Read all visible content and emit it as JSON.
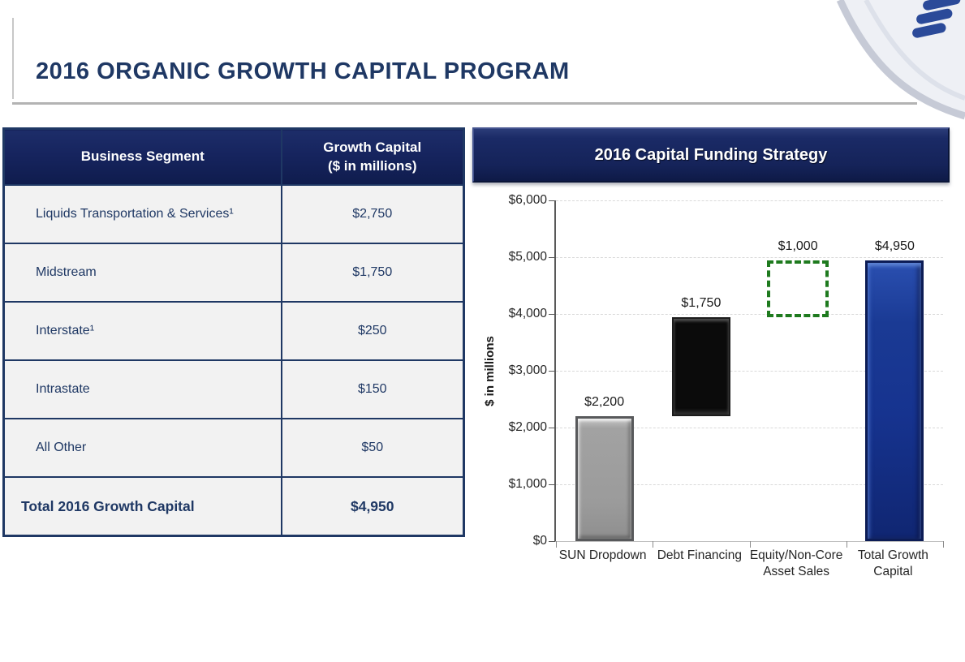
{
  "slide": {
    "title": "2016 ORGANIC GROWTH CAPITAL PROGRAM"
  },
  "table": {
    "headers": [
      "Business Segment",
      "Growth Capital\n($ in millions)"
    ],
    "rows": [
      {
        "label": "Liquids Transportation & Services¹",
        "value": "$2,750",
        "total": false
      },
      {
        "label": "Midstream",
        "value": "$1,750",
        "total": false
      },
      {
        "label": "Interstate¹",
        "value": "$250",
        "total": false
      },
      {
        "label": "Intrastate",
        "value": "$150",
        "total": false
      },
      {
        "label": "All Other",
        "value": "$50",
        "total": false
      },
      {
        "label": "Total 2016 Growth Capital",
        "value": "$4,950",
        "total": true
      }
    ]
  },
  "chart_data": {
    "type": "bar",
    "subtype": "floating-waterfall",
    "title": "2016 Capital Funding Strategy",
    "ylabel": "$ in millions",
    "ylim": [
      0,
      6000
    ],
    "ytick_step": 1000,
    "ytick_labels": [
      "$0",
      "$1,000",
      "$2,000",
      "$3,000",
      "$4,000",
      "$5,000",
      "$6,000"
    ],
    "grid": "horizontal-dashed",
    "legend": "none",
    "categories": [
      "SUN Dropdown",
      "Debt Financing",
      "Equity/Non-Core Asset Sales",
      "Total Growth Capital"
    ],
    "bars": [
      {
        "category": "SUN Dropdown",
        "start": 0,
        "end": 2200,
        "value": 2200,
        "label": "$2,200",
        "style": "gray-solid"
      },
      {
        "category": "Debt Financing",
        "start": 2200,
        "end": 3950,
        "value": 1750,
        "label": "$1,750",
        "style": "black-solid"
      },
      {
        "category": "Equity/Non-Core Asset Sales",
        "start": 3950,
        "end": 4950,
        "value": 1000,
        "label": "$1,000",
        "style": "green-dashed-outline"
      },
      {
        "category": "Total Growth Capital",
        "start": 0,
        "end": 4950,
        "value": 4950,
        "label": "$4,950",
        "style": "blue-solid"
      }
    ]
  },
  "colors": {
    "navy": "#1F3864",
    "table_header_bg": "#16245E",
    "cell_bg": "#F2F2F2",
    "bar_gray": "#9B9B9B",
    "bar_black": "#0B0B0B",
    "bar_blue": "#16338F",
    "dashed_green": "#1E7A1E",
    "gridline": "#D9D9D9"
  }
}
